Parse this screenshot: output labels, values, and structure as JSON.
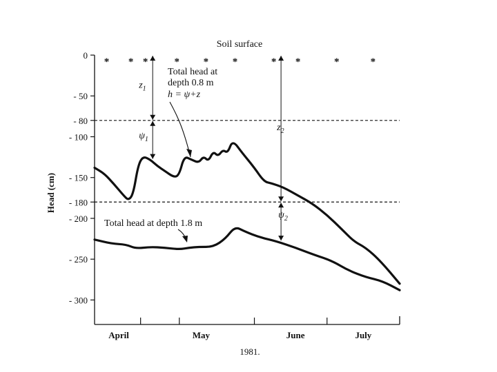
{
  "chart_data": {
    "type": "line",
    "title": "Soil surface",
    "xlabel": "1981.",
    "ylabel": "Head (cm)",
    "x_months": [
      "April",
      "May",
      "June",
      "July"
    ],
    "x_range": [
      "1981-03-27",
      "1981-07-31"
    ],
    "ylim": [
      -330,
      0
    ],
    "yticks": [
      0,
      -50,
      -80,
      -100,
      -150,
      -180,
      -200,
      -250,
      -300
    ],
    "ytick_labels": [
      "0",
      "- 50",
      "- 80",
      "- 100",
      "- 150",
      "- 180",
      "- 200",
      "- 250",
      "- 300"
    ],
    "reference_lines": [
      -80,
      -180
    ],
    "surface_markers": [
      "1981-04-01",
      "1981-04-11",
      "1981-04-17",
      "1981-04-30",
      "1981-05-12",
      "1981-05-24",
      "1981-06-09",
      "1981-06-19",
      "1981-07-05",
      "1981-07-20"
    ],
    "marker_symbol": "*",
    "series": [
      {
        "name": "Total head at depth 0.8 m",
        "points": [
          [
            "1981-03-27",
            -138
          ],
          [
            "1981-03-31",
            -145
          ],
          [
            "1981-04-04",
            -158
          ],
          [
            "1981-04-08",
            -172
          ],
          [
            "1981-04-10",
            -178
          ],
          [
            "1981-04-12",
            -170
          ],
          [
            "1981-04-14",
            -135
          ],
          [
            "1981-04-16",
            -124
          ],
          [
            "1981-04-19",
            -128
          ],
          [
            "1981-04-22",
            -136
          ],
          [
            "1981-04-25",
            -142
          ],
          [
            "1981-04-29",
            -150
          ],
          [
            "1981-05-01",
            -146
          ],
          [
            "1981-05-03",
            -124
          ],
          [
            "1981-05-06",
            -128
          ],
          [
            "1981-05-09",
            -132
          ],
          [
            "1981-05-11",
            -124
          ],
          [
            "1981-05-13",
            -130
          ],
          [
            "1981-05-15",
            -118
          ],
          [
            "1981-05-17",
            -124
          ],
          [
            "1981-05-19",
            -116
          ],
          [
            "1981-05-21",
            -120
          ],
          [
            "1981-05-23",
            -104
          ],
          [
            "1981-05-27",
            -120
          ],
          [
            "1981-06-01",
            -138
          ],
          [
            "1981-06-05",
            -155
          ],
          [
            "1981-06-08",
            -157
          ],
          [
            "1981-06-13",
            -162
          ],
          [
            "1981-06-19",
            -172
          ],
          [
            "1981-06-25",
            -182
          ],
          [
            "1981-07-01",
            -196
          ],
          [
            "1981-07-07",
            -213
          ],
          [
            "1981-07-12",
            -228
          ],
          [
            "1981-07-17",
            -236
          ],
          [
            "1981-07-23",
            -252
          ],
          [
            "1981-07-31",
            -280
          ]
        ]
      },
      {
        "name": "Total head at depth 1.8 m",
        "points": [
          [
            "1981-03-27",
            -226
          ],
          [
            "1981-04-03",
            -231
          ],
          [
            "1981-04-09",
            -232
          ],
          [
            "1981-04-13",
            -237
          ],
          [
            "1981-04-19",
            -235
          ],
          [
            "1981-04-25",
            -236
          ],
          [
            "1981-05-01",
            -238
          ],
          [
            "1981-05-05",
            -236
          ],
          [
            "1981-05-09",
            -235
          ],
          [
            "1981-05-15",
            -235
          ],
          [
            "1981-05-20",
            -225
          ],
          [
            "1981-05-24",
            -210
          ],
          [
            "1981-05-28",
            -216
          ],
          [
            "1981-06-03",
            -223
          ],
          [
            "1981-06-10",
            -228
          ],
          [
            "1981-06-18",
            -236
          ],
          [
            "1981-06-26",
            -245
          ],
          [
            "1981-07-03",
            -252
          ],
          [
            "1981-07-10",
            -264
          ],
          [
            "1981-07-17",
            -272
          ],
          [
            "1981-07-24",
            -277
          ],
          [
            "1981-07-31",
            -288
          ]
        ]
      }
    ],
    "annotations": {
      "total_head_08": [
        "Total head at",
        "depth 0.8 m"
      ],
      "equation": "h = ψ+z",
      "total_head_18": "Total head at depth 1.8 m",
      "z1": "z",
      "z1_sub": "1",
      "psi1": "ψ",
      "psi1_sub": "1",
      "z2": "z",
      "z2_sub": "2",
      "psi2": "ψ",
      "psi2_sub": "2"
    }
  }
}
